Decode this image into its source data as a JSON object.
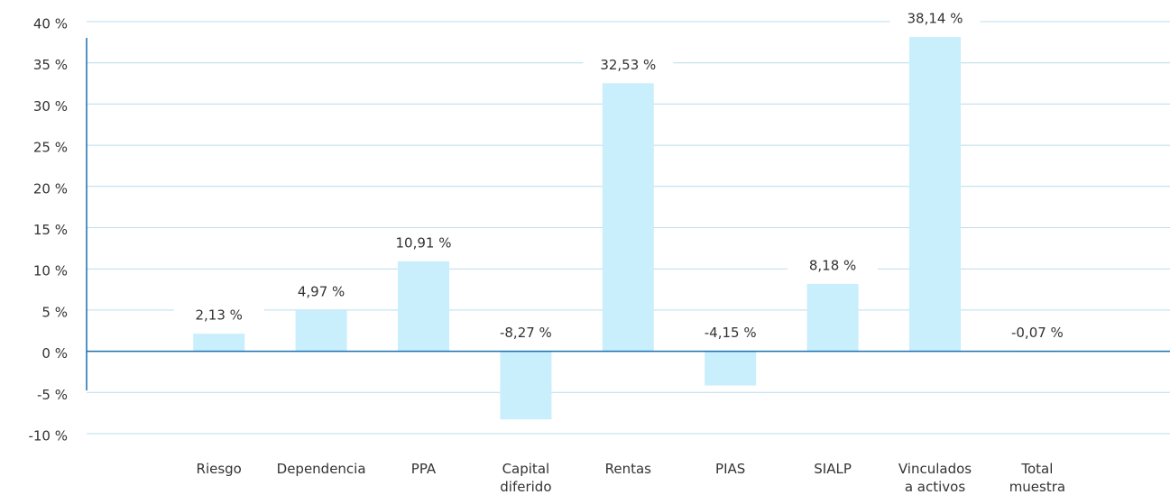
{
  "chart_data": {
    "type": "bar",
    "categories": [
      "Riesgo",
      "Dependencia",
      "PPA",
      "Capital\ndiferido",
      "Rentas",
      "PIAS",
      "SIALP",
      "Vinculados\na activos",
      "Total\nmuestra"
    ],
    "values": [
      2.13,
      4.97,
      10.91,
      -8.27,
      32.53,
      -4.15,
      8.18,
      38.14,
      -0.07
    ],
    "value_labels": [
      "2,13 %",
      "4,97 %",
      "10,91 %",
      "-8,27 %",
      "32,53 %",
      "-4,15 %",
      "8,18 %",
      "38,14 %",
      "-0,07 %"
    ],
    "color": "#c9eefc",
    "ylim": [
      -10,
      40
    ],
    "yticks": [
      {
        "value": -10,
        "label": "-10 %"
      },
      {
        "value": -5,
        "label": "-5 %"
      },
      {
        "value": 0,
        "label": "0 %"
      },
      {
        "value": 5,
        "label": "5 %"
      },
      {
        "value": 10,
        "label": "10 %"
      },
      {
        "value": 15,
        "label": "15 %"
      },
      {
        "value": 20,
        "label": "20 %"
      },
      {
        "value": 25,
        "label": "25 %"
      },
      {
        "value": 30,
        "label": "30 %"
      },
      {
        "value": 35,
        "label": "35 %"
      },
      {
        "value": 40,
        "label": "40 %"
      }
    ],
    "grid": true
  }
}
